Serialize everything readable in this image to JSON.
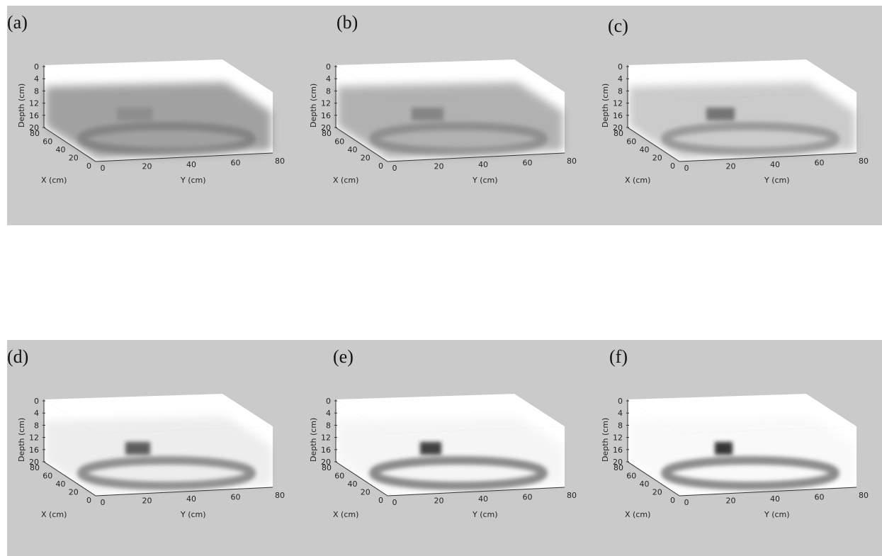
{
  "panels": [
    {
      "label": "(a)"
    },
    {
      "label": "(b)"
    },
    {
      "label": "(c)"
    },
    {
      "label": "(d)"
    },
    {
      "label": "(e)"
    },
    {
      "label": "(f)"
    }
  ],
  "axes": {
    "depth_label": "Depth (cm)",
    "x_label": "X (cm)",
    "y_label": "Y (cm)",
    "depth_ticks": [
      0,
      4,
      8,
      12,
      16,
      20
    ],
    "x_ticks": [
      80,
      60,
      40,
      20,
      0
    ],
    "y_ticks": [
      0,
      20,
      40,
      60,
      80
    ]
  }
}
